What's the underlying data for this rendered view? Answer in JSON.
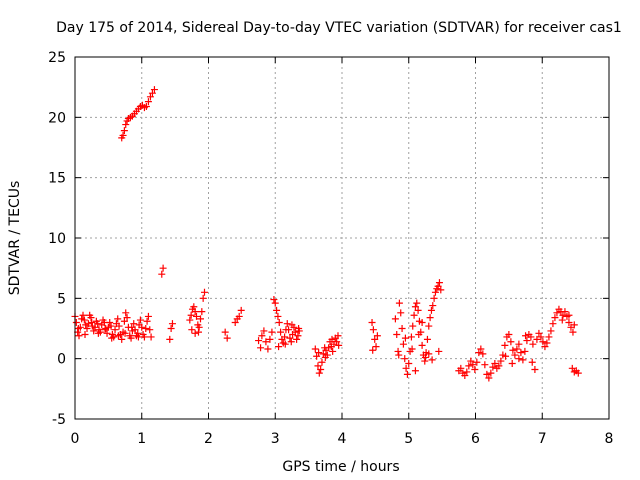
{
  "chart_data": {
    "type": "scatter",
    "title": "Day 175 of 2014, Sidereal Day-to-day VTEC variation (SDTVAR) for receiver cas1",
    "xlabel": "GPS time / hours",
    "ylabel": "SDTVAR / TECUs",
    "xlim": [
      0,
      8
    ],
    "ylim": [
      -5,
      25
    ],
    "xticks": [
      "0",
      "1",
      "2",
      "3",
      "4",
      "5",
      "6",
      "7",
      "8"
    ],
    "yticks": [
      "-5",
      "0",
      "5",
      "10",
      "15",
      "20",
      "25"
    ],
    "grid": true,
    "marker": "plus",
    "color": "#ff0000",
    "series": [
      {
        "name": "cas1",
        "points": [
          [
            0.0,
            3.5
          ],
          [
            0.02,
            3.0
          ],
          [
            0.04,
            2.2
          ],
          [
            0.06,
            1.9
          ],
          [
            0.08,
            2.6
          ],
          [
            0.1,
            3.3
          ],
          [
            0.12,
            3.6
          ],
          [
            0.14,
            3.2
          ],
          [
            0.16,
            2.8
          ],
          [
            0.18,
            2.5
          ],
          [
            0.2,
            2.9
          ],
          [
            0.22,
            3.6
          ],
          [
            0.24,
            3.4
          ],
          [
            0.26,
            2.7
          ],
          [
            0.28,
            2.3
          ],
          [
            0.3,
            2.6
          ],
          [
            0.32,
            3.1
          ],
          [
            0.34,
            2.9
          ],
          [
            0.36,
            2.4
          ],
          [
            0.38,
            2.2
          ],
          [
            0.4,
            2.8
          ],
          [
            0.42,
            3.2
          ],
          [
            0.44,
            3.0
          ],
          [
            0.46,
            2.5
          ],
          [
            0.48,
            2.1
          ],
          [
            0.5,
            2.6
          ],
          [
            0.52,
            3.0
          ],
          [
            0.54,
            2.7
          ],
          [
            0.56,
            2.0
          ],
          [
            0.58,
            1.8
          ],
          [
            0.6,
            2.4
          ],
          [
            0.62,
            2.9
          ],
          [
            0.64,
            3.3
          ],
          [
            0.66,
            2.7
          ],
          [
            0.68,
            2.0
          ],
          [
            0.7,
            1.6
          ],
          [
            0.72,
            2.2
          ],
          [
            0.74,
            3.1
          ],
          [
            0.76,
            3.8
          ],
          [
            0.78,
            3.4
          ],
          [
            0.8,
            2.6
          ],
          [
            0.82,
            1.9
          ],
          [
            0.84,
            1.7
          ],
          [
            0.86,
            2.3
          ],
          [
            0.88,
            2.9
          ],
          [
            0.9,
            2.4
          ],
          [
            0.92,
            1.9
          ],
          [
            0.94,
            2.1
          ],
          [
            0.96,
            2.8
          ],
          [
            0.98,
            3.2
          ],
          [
            1.0,
            2.6
          ],
          [
            1.02,
            2.0
          ],
          [
            1.04,
            1.8
          ],
          [
            1.06,
            2.5
          ],
          [
            1.08,
            3.1
          ],
          [
            1.1,
            3.5
          ],
          [
            1.12,
            2.4
          ],
          [
            1.14,
            1.8
          ],
          [
            0.05,
            2.5
          ],
          [
            0.15,
            2.0
          ],
          [
            0.25,
            3.0
          ],
          [
            0.35,
            2.1
          ],
          [
            0.45,
            2.4
          ],
          [
            0.55,
            1.7
          ],
          [
            0.65,
            1.9
          ],
          [
            0.75,
            2.1
          ],
          [
            0.85,
            2.6
          ],
          [
            0.95,
            1.8
          ],
          [
            0.7,
            18.3
          ],
          [
            0.72,
            18.5
          ],
          [
            0.74,
            18.9
          ],
          [
            0.76,
            19.4
          ],
          [
            0.78,
            19.7
          ],
          [
            0.8,
            19.9
          ],
          [
            0.83,
            20.0
          ],
          [
            0.86,
            20.1
          ],
          [
            0.89,
            20.3
          ],
          [
            0.92,
            20.5
          ],
          [
            0.95,
            20.7
          ],
          [
            0.98,
            20.9
          ],
          [
            1.01,
            21.0
          ],
          [
            1.04,
            20.8
          ],
          [
            1.07,
            20.9
          ],
          [
            1.1,
            21.3
          ],
          [
            1.13,
            21.7
          ],
          [
            1.16,
            22.0
          ],
          [
            1.19,
            22.3
          ],
          [
            1.3,
            7.0
          ],
          [
            1.32,
            7.5
          ],
          [
            1.42,
            1.6
          ],
          [
            1.44,
            2.5
          ],
          [
            1.46,
            2.9
          ],
          [
            1.72,
            3.2
          ],
          [
            1.74,
            3.6
          ],
          [
            1.76,
            4.1
          ],
          [
            1.78,
            4.3
          ],
          [
            1.8,
            3.9
          ],
          [
            1.82,
            3.5
          ],
          [
            1.84,
            2.8
          ],
          [
            1.86,
            2.6
          ],
          [
            1.88,
            3.3
          ],
          [
            1.9,
            3.9
          ],
          [
            1.92,
            5.0
          ],
          [
            1.94,
            5.5
          ],
          [
            1.75,
            2.4
          ],
          [
            1.8,
            2.1
          ],
          [
            1.85,
            2.2
          ],
          [
            2.25,
            2.2
          ],
          [
            2.28,
            1.7
          ],
          [
            2.4,
            3.0
          ],
          [
            2.43,
            3.3
          ],
          [
            2.46,
            3.5
          ],
          [
            2.49,
            4.0
          ],
          [
            2.75,
            1.5
          ],
          [
            2.78,
            0.9
          ],
          [
            2.8,
            1.9
          ],
          [
            2.83,
            2.3
          ],
          [
            2.86,
            1.4
          ],
          [
            2.89,
            0.8
          ],
          [
            2.92,
            1.6
          ],
          [
            2.95,
            2.2
          ],
          [
            2.98,
            4.9
          ],
          [
            3.0,
            4.6
          ],
          [
            3.02,
            4.0
          ],
          [
            3.04,
            3.5
          ],
          [
            3.06,
            3.0
          ],
          [
            3.08,
            2.2
          ],
          [
            3.1,
            1.6
          ],
          [
            3.12,
            1.3
          ],
          [
            3.14,
            1.8
          ],
          [
            3.16,
            2.4
          ],
          [
            3.18,
            2.9
          ],
          [
            3.2,
            2.4
          ],
          [
            3.22,
            1.7
          ],
          [
            3.24,
            1.4
          ],
          [
            3.26,
            2.0
          ],
          [
            3.28,
            2.6
          ],
          [
            3.3,
            2.2
          ],
          [
            3.32,
            1.6
          ],
          [
            3.34,
            1.9
          ],
          [
            3.36,
            2.3
          ],
          [
            3.05,
            1.0
          ],
          [
            3.15,
            1.2
          ],
          [
            3.25,
            2.8
          ],
          [
            3.35,
            2.5
          ],
          [
            3.6,
            0.8
          ],
          [
            3.62,
            0.2
          ],
          [
            3.64,
            -0.6
          ],
          [
            3.66,
            -1.2
          ],
          [
            3.68,
            -0.9
          ],
          [
            3.7,
            -0.3
          ],
          [
            3.72,
            0.4
          ],
          [
            3.74,
            0.9
          ],
          [
            3.76,
            0.7
          ],
          [
            3.78,
            0.3
          ],
          [
            3.8,
            0.9
          ],
          [
            3.82,
            1.4
          ],
          [
            3.84,
            1.0
          ],
          [
            3.86,
            0.6
          ],
          [
            3.88,
            1.2
          ],
          [
            3.9,
            1.7
          ],
          [
            3.92,
            1.4
          ],
          [
            3.94,
            1.9
          ],
          [
            3.65,
            0.5
          ],
          [
            3.75,
            0.1
          ],
          [
            3.85,
            1.6
          ],
          [
            3.95,
            1.1
          ],
          [
            4.45,
            3.0
          ],
          [
            4.47,
            2.4
          ],
          [
            4.49,
            1.6
          ],
          [
            4.51,
            1.0
          ],
          [
            4.53,
            1.9
          ],
          [
            4.46,
            0.7
          ],
          [
            4.8,
            3.3
          ],
          [
            4.82,
            2.0
          ],
          [
            4.84,
            0.6
          ],
          [
            4.86,
            4.6
          ],
          [
            4.88,
            3.8
          ],
          [
            4.9,
            2.5
          ],
          [
            4.92,
            1.2
          ],
          [
            4.94,
            0.0
          ],
          [
            4.96,
            -0.8
          ],
          [
            4.98,
            -1.3
          ],
          [
            5.0,
            -0.4
          ],
          [
            5.02,
            0.6
          ],
          [
            5.04,
            1.8
          ],
          [
            5.06,
            2.7
          ],
          [
            5.08,
            3.6
          ],
          [
            5.1,
            4.3
          ],
          [
            5.12,
            4.6
          ],
          [
            5.14,
            4.0
          ],
          [
            5.16,
            3.1
          ],
          [
            5.18,
            2.2
          ],
          [
            5.2,
            1.1
          ],
          [
            5.22,
            0.3
          ],
          [
            5.24,
            -0.2
          ],
          [
            5.26,
            0.5
          ],
          [
            5.28,
            1.6
          ],
          [
            5.3,
            2.7
          ],
          [
            5.32,
            3.4
          ],
          [
            5.34,
            4.0
          ],
          [
            5.36,
            4.4
          ],
          [
            5.38,
            5.0
          ],
          [
            5.4,
            5.5
          ],
          [
            5.42,
            5.8
          ],
          [
            5.44,
            6.0
          ],
          [
            5.46,
            6.3
          ],
          [
            5.48,
            5.7
          ],
          [
            4.85,
            0.3
          ],
          [
            4.95,
            1.7
          ],
          [
            5.05,
            0.8
          ],
          [
            5.15,
            2.0
          ],
          [
            5.25,
            0.1
          ],
          [
            5.35,
            -0.1
          ],
          [
            5.45,
            0.6
          ],
          [
            5.1,
            -1.0
          ],
          [
            5.2,
            3.0
          ],
          [
            5.3,
            0.4
          ],
          [
            5.75,
            -1.0
          ],
          [
            5.78,
            -0.8
          ],
          [
            5.81,
            -1.2
          ],
          [
            5.84,
            -1.4
          ],
          [
            5.87,
            -1.1
          ],
          [
            5.9,
            -0.6
          ],
          [
            5.93,
            -0.2
          ],
          [
            5.96,
            -0.5
          ],
          [
            5.99,
            -0.9
          ],
          [
            6.02,
            -0.3
          ],
          [
            6.05,
            0.5
          ],
          [
            6.08,
            0.8
          ],
          [
            6.11,
            0.4
          ],
          [
            6.14,
            -0.5
          ],
          [
            6.17,
            -1.3
          ],
          [
            6.2,
            -1.6
          ],
          [
            6.23,
            -1.2
          ],
          [
            6.26,
            -0.7
          ],
          [
            6.29,
            -0.4
          ],
          [
            6.32,
            -0.8
          ],
          [
            6.35,
            -0.6
          ],
          [
            6.38,
            -0.2
          ],
          [
            6.41,
            0.3
          ],
          [
            6.44,
            1.1
          ],
          [
            6.47,
            1.8
          ],
          [
            6.5,
            2.0
          ],
          [
            6.53,
            1.4
          ],
          [
            6.56,
            0.7
          ],
          [
            6.59,
            0.3
          ],
          [
            6.62,
            0.8
          ],
          [
            6.65,
            1.2
          ],
          [
            6.68,
            0.5
          ],
          [
            6.71,
            -0.1
          ],
          [
            6.74,
            0.6
          ],
          [
            6.77,
            1.5
          ],
          [
            6.8,
            2.0
          ],
          [
            6.83,
            1.8
          ],
          [
            6.86,
            1.2
          ],
          [
            6.89,
            -0.9
          ],
          [
            6.92,
            1.6
          ],
          [
            6.95,
            2.1
          ],
          [
            6.98,
            1.8
          ],
          [
            7.01,
            1.4
          ],
          [
            7.04,
            1.0
          ],
          [
            7.07,
            1.3
          ],
          [
            7.1,
            1.8
          ],
          [
            7.13,
            2.3
          ],
          [
            7.16,
            2.9
          ],
          [
            7.19,
            3.4
          ],
          [
            7.22,
            3.8
          ],
          [
            7.25,
            4.1
          ],
          [
            7.28,
            3.9
          ],
          [
            7.31,
            3.6
          ],
          [
            7.34,
            3.9
          ],
          [
            7.37,
            3.5
          ],
          [
            7.4,
            3.0
          ],
          [
            7.43,
            2.6
          ],
          [
            7.46,
            2.2
          ],
          [
            7.48,
            2.8
          ],
          [
            6.45,
            0.2
          ],
          [
            6.55,
            -0.4
          ],
          [
            6.65,
            0.0
          ],
          [
            6.75,
            1.9
          ],
          [
            6.85,
            -0.3
          ],
          [
            7.3,
            3.2
          ],
          [
            7.4,
            3.6
          ],
          [
            7.45,
            -0.8
          ],
          [
            7.48,
            -1.1
          ],
          [
            7.51,
            -1.0
          ],
          [
            7.54,
            -1.2
          ]
        ]
      }
    ]
  }
}
